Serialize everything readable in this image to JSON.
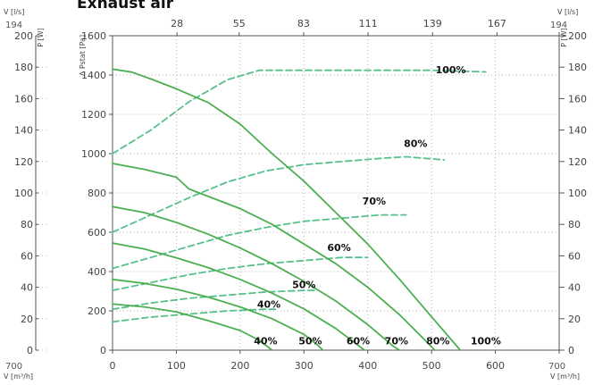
{
  "chart_data": {
    "type": "line",
    "title": "Exhaust air",
    "x_bottom": {
      "label": "V [m³/h]",
      "ticks": [
        0,
        100,
        200,
        300,
        400,
        500,
        600,
        700
      ],
      "range": [
        0,
        700
      ]
    },
    "x_top": {
      "label": "V [l/s]",
      "ticks": [
        28,
        55,
        83,
        111,
        139,
        167,
        194
      ],
      "range": [
        0,
        194
      ]
    },
    "y_left": {
      "label": "Δ Pstat [Pa]",
      "ticks": [
        0,
        200,
        400,
        600,
        800,
        1000,
        1200,
        1400,
        1600
      ],
      "range": [
        0,
        1600
      ]
    },
    "y_power": {
      "label": "P [W]",
      "ticks": [
        0,
        20,
        40,
        60,
        80,
        100,
        120,
        140,
        160,
        180,
        200
      ],
      "range": [
        0,
        200
      ]
    },
    "corner_labels": {
      "left_top": "194",
      "left_bottom": "700",
      "right_top": "194",
      "right_bottom": "700"
    },
    "pressure_curves": [
      {
        "name": "100%",
        "points": [
          [
            0,
            1430
          ],
          [
            30,
            1415
          ],
          [
            60,
            1380
          ],
          [
            100,
            1330
          ],
          [
            150,
            1260
          ],
          [
            200,
            1150
          ],
          [
            250,
            1000
          ],
          [
            300,
            860
          ],
          [
            350,
            700
          ],
          [
            400,
            540
          ],
          [
            450,
            360
          ],
          [
            500,
            170
          ],
          [
            545,
            0
          ]
        ]
      },
      {
        "name": "80%",
        "points": [
          [
            0,
            950
          ],
          [
            50,
            920
          ],
          [
            100,
            880
          ],
          [
            120,
            820
          ],
          [
            200,
            720
          ],
          [
            250,
            640
          ],
          [
            300,
            540
          ],
          [
            350,
            440
          ],
          [
            400,
            320
          ],
          [
            450,
            180
          ],
          [
            490,
            50
          ],
          [
            505,
            0
          ]
        ]
      },
      {
        "name": "70%",
        "points": [
          [
            0,
            730
          ],
          [
            50,
            700
          ],
          [
            100,
            650
          ],
          [
            150,
            590
          ],
          [
            200,
            520
          ],
          [
            250,
            440
          ],
          [
            300,
            350
          ],
          [
            350,
            250
          ],
          [
            400,
            130
          ],
          [
            440,
            20
          ],
          [
            450,
            0
          ]
        ]
      },
      {
        "name": "60%",
        "points": [
          [
            0,
            545
          ],
          [
            50,
            515
          ],
          [
            100,
            470
          ],
          [
            150,
            420
          ],
          [
            200,
            360
          ],
          [
            250,
            290
          ],
          [
            300,
            210
          ],
          [
            350,
            110
          ],
          [
            395,
            0
          ]
        ]
      },
      {
        "name": "50%",
        "points": [
          [
            0,
            360
          ],
          [
            50,
            340
          ],
          [
            100,
            310
          ],
          [
            150,
            270
          ],
          [
            200,
            220
          ],
          [
            250,
            160
          ],
          [
            300,
            80
          ],
          [
            320,
            30
          ],
          [
            330,
            0
          ]
        ]
      },
      {
        "name": "40%",
        "points": [
          [
            0,
            235
          ],
          [
            50,
            220
          ],
          [
            100,
            195
          ],
          [
            150,
            150
          ],
          [
            200,
            100
          ],
          [
            230,
            50
          ],
          [
            250,
            0
          ]
        ]
      }
    ],
    "power_curves": [
      {
        "name": "100%",
        "points": [
          [
            0,
            125
          ],
          [
            60,
            140
          ],
          [
            120,
            158
          ],
          [
            180,
            172
          ],
          [
            230,
            178
          ],
          [
            260,
            178
          ],
          [
            300,
            178
          ],
          [
            400,
            178
          ],
          [
            500,
            178
          ],
          [
            585,
            177
          ]
        ]
      },
      {
        "name": "80%",
        "points": [
          [
            0,
            75
          ],
          [
            60,
            86
          ],
          [
            120,
            97
          ],
          [
            180,
            107
          ],
          [
            240,
            114
          ],
          [
            300,
            118
          ],
          [
            360,
            120
          ],
          [
            420,
            122
          ],
          [
            460,
            123
          ],
          [
            520,
            121
          ]
        ]
      },
      {
        "name": "70%",
        "points": [
          [
            0,
            52
          ],
          [
            60,
            59
          ],
          [
            120,
            66
          ],
          [
            180,
            73
          ],
          [
            240,
            78
          ],
          [
            300,
            82
          ],
          [
            360,
            84
          ],
          [
            420,
            86
          ],
          [
            460,
            86
          ]
        ]
      },
      {
        "name": "60%",
        "points": [
          [
            0,
            38
          ],
          [
            60,
            43
          ],
          [
            120,
            48
          ],
          [
            180,
            52
          ],
          [
            240,
            55
          ],
          [
            300,
            57
          ],
          [
            360,
            59
          ],
          [
            400,
            59
          ]
        ]
      },
      {
        "name": "50%",
        "points": [
          [
            0,
            26
          ],
          [
            60,
            30
          ],
          [
            120,
            33
          ],
          [
            180,
            35
          ],
          [
            240,
            37
          ],
          [
            300,
            38
          ],
          [
            320,
            38
          ]
        ]
      },
      {
        "name": "40%",
        "points": [
          [
            0,
            18
          ],
          [
            60,
            21
          ],
          [
            120,
            23
          ],
          [
            180,
            25
          ],
          [
            240,
            26
          ],
          [
            260,
            26
          ]
        ]
      }
    ],
    "curve_labels": [
      {
        "text": "100%",
        "x": 530,
        "y": 1410
      },
      {
        "text": "80%",
        "x": 475,
        "y": 1035
      },
      {
        "text": "70%",
        "x": 410,
        "y": 740
      },
      {
        "text": "60%",
        "x": 355,
        "y": 505
      },
      {
        "text": "50%",
        "x": 300,
        "y": 315
      },
      {
        "text": "40%",
        "x": 245,
        "y": 215
      },
      {
        "text": "40%",
        "x": 240,
        "y": 30
      },
      {
        "text": "50%",
        "x": 310,
        "y": 30
      },
      {
        "text": "60%",
        "x": 385,
        "y": 30
      },
      {
        "text": "70%",
        "x": 445,
        "y": 30
      },
      {
        "text": "80%",
        "x": 510,
        "y": 30
      },
      {
        "text": "100%",
        "x": 585,
        "y": 30
      }
    ],
    "colors": {
      "pressure": "#4caf50",
      "power": "#57c08d",
      "grid": "#b5b5b5",
      "axis": "#555555"
    }
  }
}
